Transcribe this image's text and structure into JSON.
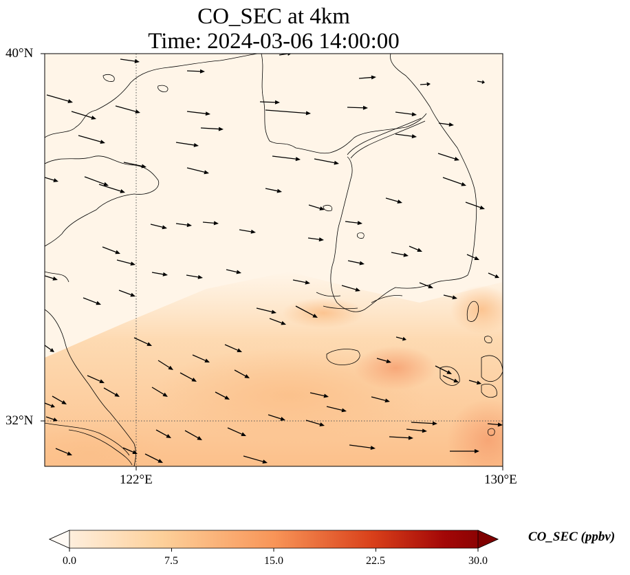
{
  "title": {
    "line1": "CO_SEC at 4km",
    "line2": "Time: 2024-03-06 14:00:00"
  },
  "map": {
    "lat_ticks": [
      "40°N",
      "32°N"
    ],
    "lon_ticks": [
      "122°E",
      "130°E"
    ],
    "extent": {
      "lon_min": 120.0,
      "lon_max": 130.0,
      "lat_min": 31.0,
      "lat_max": 40.0
    },
    "gridlines": "dotted at 122°E and 32°N",
    "field_colors": {
      "low": "#fff5e8",
      "mid": "#fdcb93",
      "high": "#f6a070"
    },
    "wind_vectors": "black arrows, mostly pointing east / east-southeast"
  },
  "colorbar": {
    "label": "CO_SEC (ppbv)",
    "ticks": [
      "0.0",
      "7.5",
      "15.0",
      "22.5",
      "30.0"
    ],
    "range": [
      0.0,
      30.0
    ],
    "colormap": [
      "#fff5eb",
      "#fdd09a",
      "#f89558",
      "#d9401a",
      "#a30707",
      "#7f0000"
    ],
    "extend": "both"
  }
}
